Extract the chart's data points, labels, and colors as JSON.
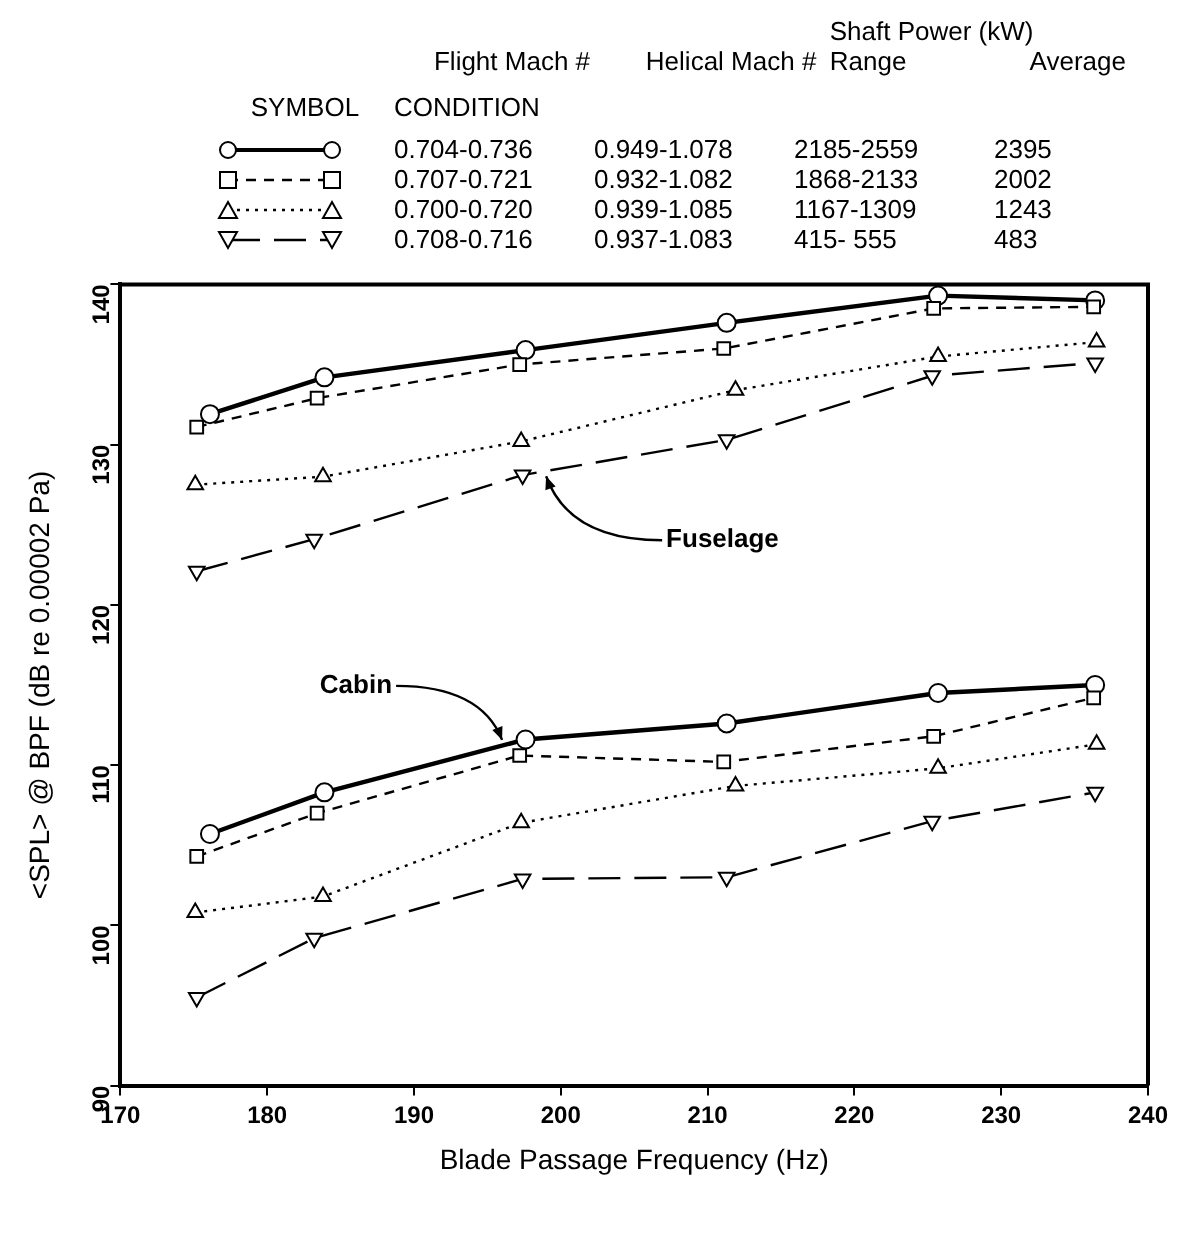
{
  "chart_data": {
    "type": "line",
    "xlabel": "Blade Passage Frequency (Hz)",
    "ylabel": "<SPL> @ BPF (dB re 0.00002 Pa)",
    "legend": "top",
    "legend_title": "SYMBOL",
    "xlim": [
      170,
      240
    ],
    "xticks": [
      170,
      180,
      190,
      200,
      210,
      220,
      230,
      240
    ],
    "ylim": [
      90,
      140
    ],
    "yticks": [
      90,
      100,
      110,
      120,
      130,
      140
    ],
    "grid": false,
    "annotations": [
      "Flight Mach #",
      "CONDITION",
      "Helical Mach #",
      "Shaft Power (kW)",
      "Range",
      "Average",
      {
        "text": "Fuselage",
        "x": 199,
        "y": 128.4
      },
      {
        "text": "Cabin",
        "x": 196,
        "y": 111.2
      }
    ],
    "series": [
      {
        "name": "0.704-0.736\t0.949-1.078\t2185-2559\t2395",
        "color": "#000000",
        "marker": "circle",
        "line_style": "solid",
        "x": [
          176.1,
          183.9,
          197.6,
          211.3,
          225.7,
          236.4
        ],
        "values": [
          131.9,
          134.2,
          135.9,
          137.6,
          139.3,
          139.0
        ]
      },
      {
        "name": "0.707-0.721\t0.932-1.082\t1868-2133\t2002",
        "color": "#000000",
        "marker": "square",
        "line_style": "dashed",
        "x": [
          175.2,
          183.4,
          197.2,
          211.1,
          225.4,
          236.3
        ],
        "values": [
          131.1,
          132.9,
          135.0,
          136.0,
          138.5,
          138.6
        ]
      },
      {
        "name": "0.700-0.720\t0.939-1.085\t1167-1309\t1243",
        "color": "#000000",
        "marker": "triangle",
        "line_style": "dotted",
        "x": [
          175.1,
          183.8,
          197.3,
          211.9,
          225.7,
          236.5
        ],
        "values": [
          127.5,
          128.0,
          130.2,
          133.4,
          135.5,
          136.4
        ]
      },
      {
        "name": "0.708-0.716\t0.937-1.083\t415- 555\t483",
        "color": "#000000",
        "marker": "triangle-down",
        "line_style": "longdash",
        "x": [
          175.2,
          183.2,
          197.4,
          211.3,
          225.3,
          236.4
        ],
        "values": [
          122.1,
          124.1,
          128.1,
          130.3,
          134.3,
          135.1
        ]
      },
      {
        "color": "#000000",
        "marker": "circle",
        "line_style": "solid",
        "x": [
          176.1,
          183.9,
          197.6,
          211.3,
          225.7,
          236.4
        ],
        "values": [
          105.7,
          108.3,
          111.6,
          112.6,
          114.5,
          115.0
        ]
      },
      {
        "color": "#000000",
        "marker": "square",
        "line_style": "dashed",
        "x": [
          175.2,
          183.4,
          197.2,
          211.1,
          225.4,
          236.3
        ],
        "values": [
          104.3,
          107.0,
          110.6,
          110.2,
          111.8,
          114.2
        ]
      },
      {
        "color": "#000000",
        "marker": "triangle",
        "line_style": "dotted",
        "x": [
          175.1,
          183.8,
          197.3,
          211.9,
          225.7,
          236.5
        ],
        "values": [
          100.8,
          101.8,
          106.4,
          108.7,
          109.8,
          111.3
        ]
      },
      {
        "color": "#000000",
        "marker": "triangle-down",
        "line_style": "longdash",
        "x": [
          175.2,
          183.2,
          197.4,
          211.3,
          225.3,
          236.4
        ],
        "values": [
          95.5,
          99.2,
          102.9,
          103.0,
          106.5,
          108.3
        ]
      }
    ]
  }
}
